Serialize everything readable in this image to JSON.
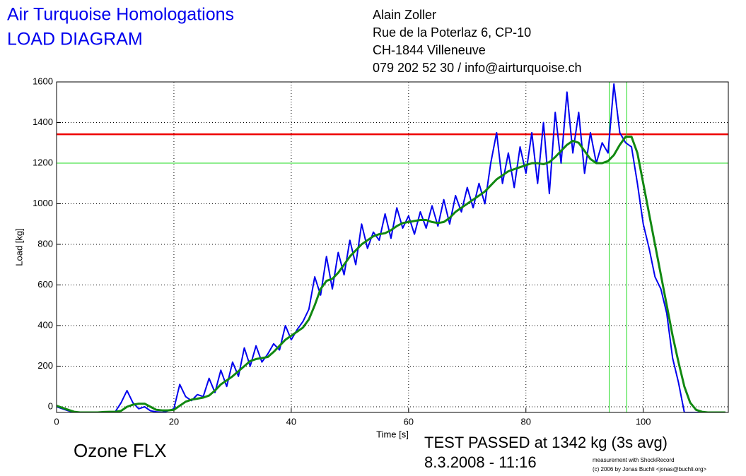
{
  "chart_data": {
    "type": "line",
    "title": "Air Turquoise Homologations",
    "subtitle": "LOAD DIAGRAM",
    "address": [
      "Alain Zoller",
      "Rue de la Poterlaz 6, CP-10",
      "CH-1844 Villeneuve",
      "079 202 52 30 / info@airturquoise.ch"
    ],
    "glider": "Ozone FLX",
    "result": "TEST PASSED at 1342 kg (3s avg)",
    "date": "8.3.2008 - 11:16",
    "credits": [
      "measurement with ShockRecord",
      "(c) 2006 by Jonas Buchli <jonas@buchli.org>"
    ],
    "x_label": "Time [s]",
    "y_label": "Load [kg]",
    "xlim": [
      0,
      114.5
    ],
    "ylim": [
      -28,
      1600
    ],
    "xticks": [
      0,
      20,
      40,
      60,
      80,
      100
    ],
    "yticks": [
      0,
      200,
      400,
      600,
      800,
      1000,
      1200,
      1400,
      1600
    ],
    "grid": true,
    "hlines": [
      {
        "value": 1342,
        "color": "#ee0000"
      },
      {
        "value": 1200,
        "color": "#22dd22"
      }
    ],
    "vlines": [
      {
        "value": 94.2,
        "color": "#22dd22"
      },
      {
        "value": 97.2,
        "color": "#22dd22"
      }
    ],
    "x": [
      0,
      1,
      2,
      3,
      4,
      5,
      6,
      7,
      8,
      9,
      10,
      11,
      12,
      13,
      14,
      15,
      16,
      17,
      18,
      19,
      20,
      21,
      22,
      23,
      24,
      25,
      26,
      27,
      28,
      29,
      30,
      31,
      32,
      33,
      34,
      35,
      36,
      37,
      38,
      39,
      40,
      41,
      42,
      43,
      44,
      45,
      46,
      47,
      48,
      49,
      50,
      51,
      52,
      53,
      54,
      55,
      56,
      57,
      58,
      59,
      60,
      61,
      62,
      63,
      64,
      65,
      66,
      67,
      68,
      69,
      70,
      71,
      72,
      73,
      74,
      75,
      76,
      77,
      78,
      79,
      80,
      81,
      82,
      83,
      84,
      85,
      86,
      87,
      88,
      89,
      90,
      91,
      92,
      93,
      94,
      95,
      96,
      97,
      98,
      99,
      100,
      101,
      102,
      103,
      104,
      105,
      106,
      107,
      108,
      109,
      110,
      111,
      112,
      113,
      114
    ],
    "series": [
      {
        "color": "#0000ee",
        "width": 2,
        "values": [
          0,
          -10,
          -20,
          -28,
          -28,
          -28,
          -28,
          -28,
          -28,
          -26,
          -25,
          20,
          80,
          20,
          -10,
          0,
          -20,
          -25,
          -28,
          -20,
          -10,
          110,
          50,
          30,
          60,
          50,
          140,
          70,
          180,
          100,
          220,
          150,
          290,
          200,
          300,
          220,
          260,
          310,
          280,
          400,
          330,
          380,
          420,
          480,
          640,
          550,
          740,
          580,
          760,
          650,
          820,
          700,
          900,
          780,
          860,
          820,
          950,
          830,
          980,
          880,
          940,
          850,
          960,
          880,
          990,
          890,
          1020,
          900,
          1040,
          960,
          1080,
          980,
          1100,
          1000,
          1200,
          1350,
          1100,
          1250,
          1080,
          1280,
          1150,
          1350,
          1100,
          1400,
          1050,
          1450,
          1200,
          1550,
          1250,
          1450,
          1150,
          1350,
          1200,
          1300,
          1250,
          1590,
          1350,
          1300,
          1280,
          1100,
          900,
          780,
          640,
          580,
          460,
          240,
          120,
          -28,
          -28,
          -28,
          -28,
          -28,
          -28,
          -28,
          -28
        ]
      },
      {
        "color": "#118811",
        "width": 3,
        "values": [
          5,
          -5,
          -15,
          -25,
          -28,
          -28,
          -28,
          -28,
          -26,
          -25,
          -25,
          -20,
          0,
          10,
          15,
          15,
          0,
          -15,
          -18,
          -18,
          -15,
          5,
          25,
          35,
          40,
          45,
          55,
          80,
          110,
          130,
          150,
          175,
          200,
          225,
          235,
          240,
          245,
          270,
          300,
          330,
          350,
          370,
          390,
          430,
          500,
          580,
          620,
          630,
          660,
          700,
          740,
          770,
          800,
          820,
          840,
          850,
          855,
          870,
          890,
          905,
          910,
          915,
          920,
          920,
          910,
          905,
          910,
          930,
          960,
          980,
          1000,
          1020,
          1040,
          1060,
          1090,
          1120,
          1140,
          1160,
          1170,
          1180,
          1190,
          1200,
          1200,
          1195,
          1205,
          1230,
          1260,
          1290,
          1310,
          1300,
          1260,
          1220,
          1200,
          1200,
          1210,
          1240,
          1290,
          1330,
          1330,
          1250,
          1100,
          950,
          800,
          650,
          500,
          350,
          220,
          100,
          20,
          -15,
          -25,
          -28,
          -28,
          -28,
          -28
        ]
      }
    ]
  }
}
